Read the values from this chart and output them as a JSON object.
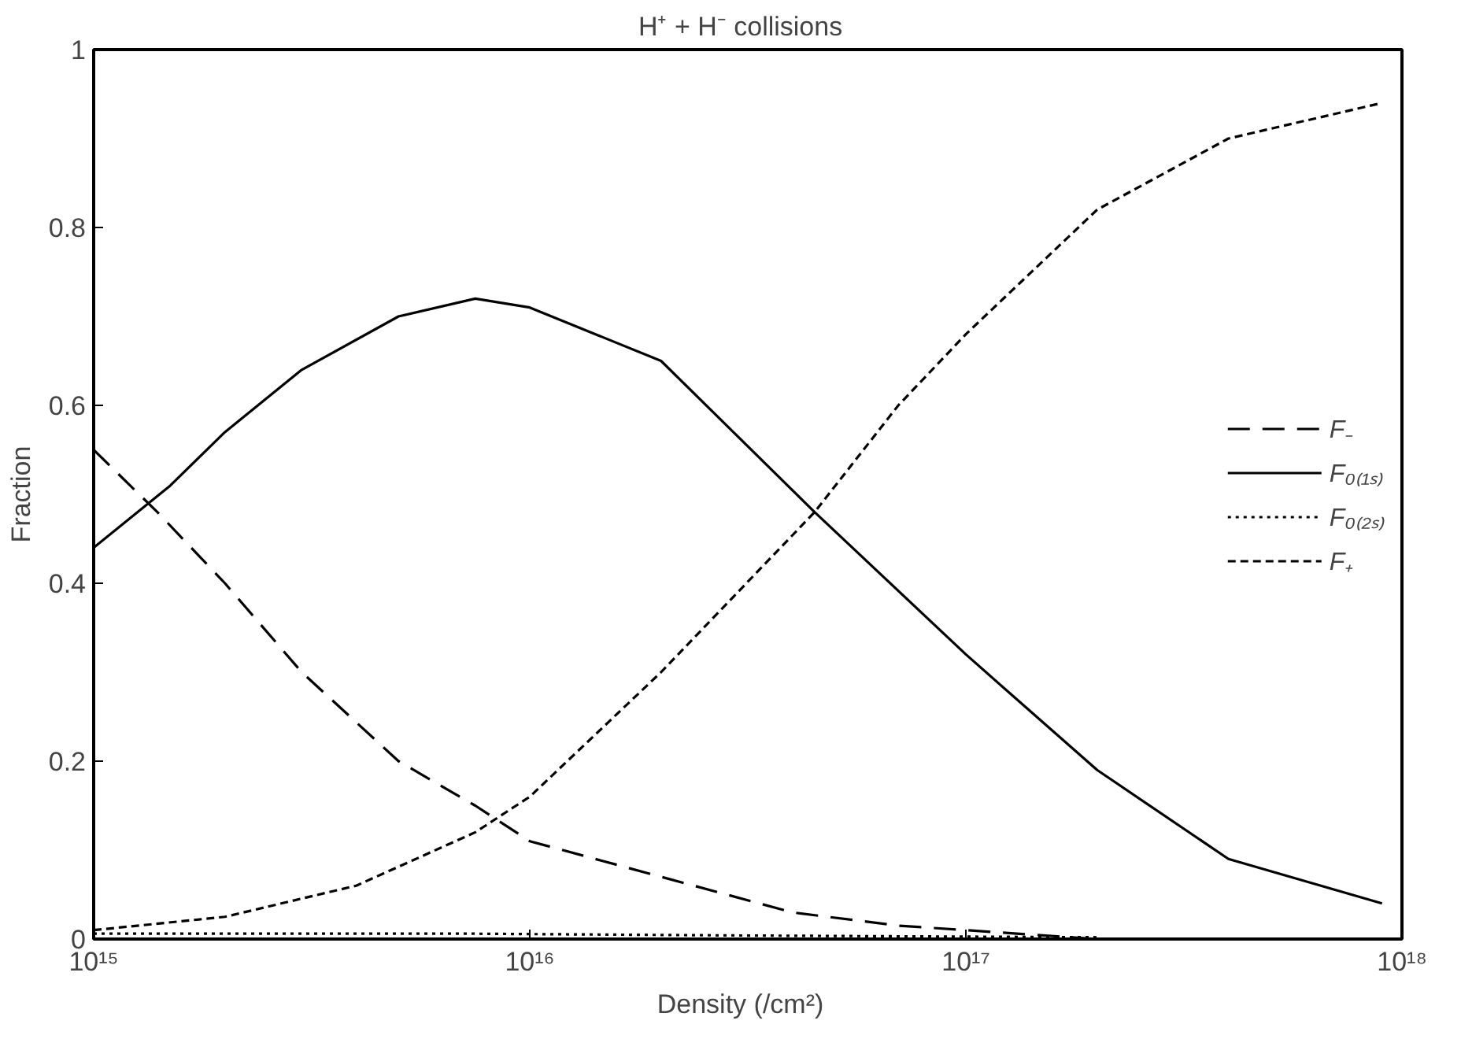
{
  "chart_data": {
    "type": "line",
    "title": "H⁺ + H⁻   collisions",
    "xlabel": "Density   (/cm²)",
    "ylabel": "Fraction",
    "log": "x",
    "xlim": [
      1000000000000000.0,
      1e+18
    ],
    "ylim": [
      0,
      1
    ],
    "xticks": [
      {
        "value": 1000000000000000.0,
        "label": "10¹⁵"
      },
      {
        "value": 1e+16,
        "label": "10¹⁶"
      },
      {
        "value": 1e+17,
        "label": "10¹⁷"
      },
      {
        "value": 1e+18,
        "label": "10¹⁸"
      }
    ],
    "yticks": [
      0,
      0.2,
      0.4,
      0.6,
      0.8,
      1
    ],
    "grid": false,
    "legend": "right",
    "marker": "none",
    "series": [
      {
        "name": "F₋",
        "color": "#000000",
        "line_style": "dashed",
        "x": [
          1000000000000000.0,
          1400000000000000.0,
          2000000000000000.0,
          3000000000000000.0,
          5000000000000000.0,
          7500000000000000.0,
          1e+16,
          2e+16,
          4e+16,
          7e+16,
          1e+17,
          2e+17
        ],
        "values": [
          0.55,
          0.48,
          0.4,
          0.3,
          0.2,
          0.15,
          0.11,
          0.07,
          0.03,
          0.015,
          0.01,
          0.0
        ]
      },
      {
        "name": "F₀₍₁ₛ₎",
        "color": "#000000",
        "line_style": "solid",
        "x": [
          1000000000000000.0,
          1500000000000000.0,
          2000000000000000.0,
          3000000000000000.0,
          5000000000000000.0,
          7500000000000000.0,
          1e+16,
          2e+16,
          4.5e+16,
          1e+17,
          2e+17,
          4e+17,
          9e+17
        ],
        "values": [
          0.44,
          0.51,
          0.57,
          0.64,
          0.7,
          0.72,
          0.71,
          0.65,
          0.48,
          0.32,
          0.19,
          0.09,
          0.04
        ]
      },
      {
        "name": "F₀₍₂ₛ₎",
        "color": "#000000",
        "line_style": "dotted",
        "x": [
          1000000000000000.0,
          7500000000000000.0,
          3e+16,
          2e+17
        ],
        "values": [
          0.006,
          0.006,
          0.004,
          0.002
        ]
      },
      {
        "name": "F₊",
        "color": "#000000",
        "line_style": "dashed",
        "x": [
          1000000000000000.0,
          2000000000000000.0,
          4000000000000000.0,
          7500000000000000.0,
          1e+16,
          2e+16,
          4.5e+16,
          7e+16,
          1e+17,
          2e+17,
          4e+17,
          9e+17
        ],
        "values": [
          0.01,
          0.025,
          0.06,
          0.12,
          0.16,
          0.3,
          0.48,
          0.6,
          0.68,
          0.82,
          0.9,
          0.94
        ]
      }
    ]
  }
}
